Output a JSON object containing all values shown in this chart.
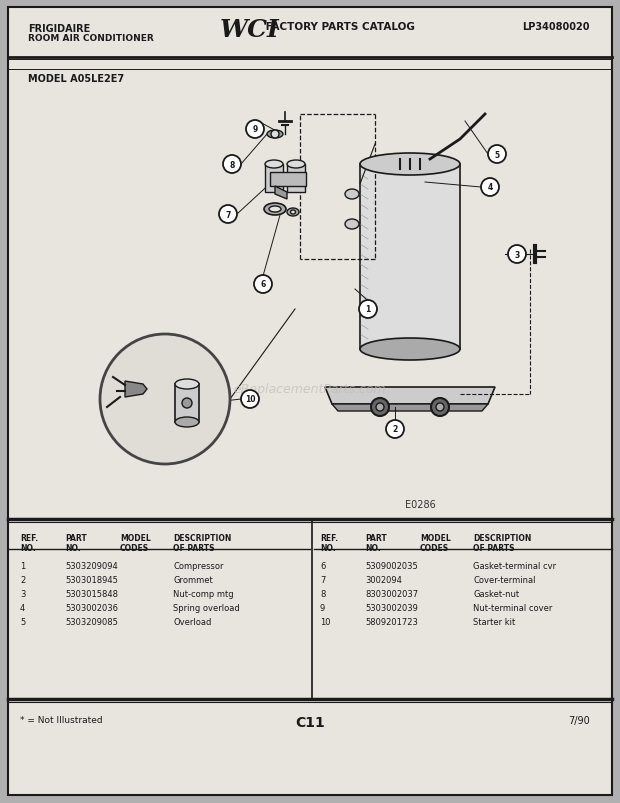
{
  "page_bg": "#b0b0b0",
  "content_bg": "#e8e5df",
  "header": {
    "brand": "FRIGIDAIRE",
    "sub": "ROOM AIR CONDITIONER",
    "wci": "WCI",
    "catalog": " FACTORY PARTS CATALOG",
    "part_no": "LP34080020"
  },
  "model": "MODEL A05LE2E7",
  "diagram_code": "E0286",
  "page_id": "C11",
  "date": "7/90",
  "footnote": "* = Not Illustrated",
  "parts_left": [
    [
      "1",
      "5303209094",
      "",
      "Compressor"
    ],
    [
      "2",
      "5303018945",
      "",
      "Grommet"
    ],
    [
      "3",
      "5303015848",
      "",
      "Nut-comp mtg"
    ],
    [
      "4",
      "5303002036",
      "",
      "Spring overload"
    ],
    [
      "5",
      "5303209085",
      "",
      "Overload"
    ]
  ],
  "parts_right": [
    [
      "6",
      "5309002035",
      "",
      "Gasket-terminal cvr"
    ],
    [
      "7",
      "3002094",
      "",
      "Cover-terminal"
    ],
    [
      "8",
      "8303002037",
      "",
      "Gasket-nut"
    ],
    [
      "9",
      "5303002039",
      "",
      "Nut-terminal cover"
    ],
    [
      "10",
      "5809201723",
      "",
      "Starter kit"
    ]
  ],
  "watermark": "eReplacementParts.com",
  "dark": "#1a1a1a",
  "mid": "#888888",
  "light": "#cccccc",
  "lighter": "#dddddd"
}
